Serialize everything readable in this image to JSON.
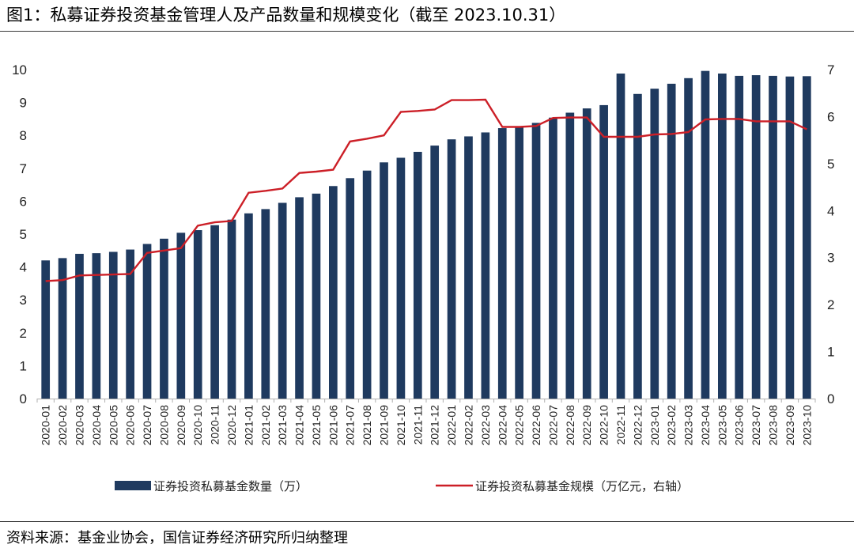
{
  "title": "图1：私募证券投资基金管理人及产品数量和规模变化（截至 2023.10.31）",
  "source": "资料来源：基金业协会，国信证券经济研究所归纳整理",
  "colors": {
    "bar": "#1f3a5f",
    "line": "#cc1f27",
    "axis": "#b0b0b0"
  },
  "chart_data": {
    "type": "bar+line",
    "categories": [
      "2020-01",
      "2020-02",
      "2020-03",
      "2020-04",
      "2020-05",
      "2020-06",
      "2020-07",
      "2020-08",
      "2020-09",
      "2020-10",
      "2020-11",
      "2020-12",
      "2021-01",
      "2021-02",
      "2021-03",
      "2021-04",
      "2021-05",
      "2021-06",
      "2021-07",
      "2021-08",
      "2021-09",
      "2021-10",
      "2021-11",
      "2021-12",
      "2022-01",
      "2022-02",
      "2022-03",
      "2022-04",
      "2022-05",
      "2022-06",
      "2022-07",
      "2022-08",
      "2022-09",
      "2022-10",
      "2022-11",
      "2022-12",
      "2023-01",
      "2023-02",
      "2023-03",
      "2023-04",
      "2023-05",
      "2023-06",
      "2023-07",
      "2023-08",
      "2023-09",
      "2023-10"
    ],
    "series": [
      {
        "name": "证券投资私募基金数量（万）",
        "type": "bar",
        "axis": "left",
        "values": [
          4.2,
          4.27,
          4.4,
          4.42,
          4.46,
          4.53,
          4.7,
          4.86,
          5.04,
          5.12,
          5.27,
          5.44,
          5.63,
          5.76,
          5.95,
          6.12,
          6.23,
          6.46,
          6.7,
          6.93,
          7.18,
          7.32,
          7.5,
          7.69,
          7.88,
          7.97,
          8.09,
          8.22,
          8.27,
          8.38,
          8.54,
          8.69,
          8.82,
          8.92,
          9.88,
          9.26,
          9.42,
          9.57,
          9.74,
          9.96,
          9.88,
          9.81,
          9.83,
          9.81,
          9.79,
          9.8
        ]
      },
      {
        "name": "证券投资私募基金规模（万亿元，右轴）",
        "type": "line",
        "axis": "right",
        "values": [
          2.5,
          2.52,
          2.62,
          2.63,
          2.64,
          2.65,
          3.1,
          3.15,
          3.2,
          3.68,
          3.75,
          3.78,
          4.38,
          4.42,
          4.47,
          4.8,
          4.83,
          4.87,
          5.47,
          5.53,
          5.6,
          6.1,
          6.12,
          6.15,
          6.35,
          6.35,
          6.36,
          5.78,
          5.78,
          5.8,
          5.97,
          5.98,
          5.98,
          5.57,
          5.57,
          5.57,
          5.62,
          5.63,
          5.67,
          5.94,
          5.95,
          5.95,
          5.9,
          5.9,
          5.9,
          5.73
        ]
      }
    ],
    "y_left": {
      "ylim": [
        0,
        10
      ],
      "ticks": [
        "0",
        "1",
        "2",
        "3",
        "4",
        "5",
        "6",
        "7",
        "8",
        "9",
        "10"
      ]
    },
    "y_right": {
      "ylim": [
        0,
        7
      ],
      "ticks": [
        "0",
        "1",
        "2",
        "3",
        "4",
        "5",
        "6",
        "7"
      ]
    },
    "legend_placement": "bottom",
    "grid": false
  }
}
